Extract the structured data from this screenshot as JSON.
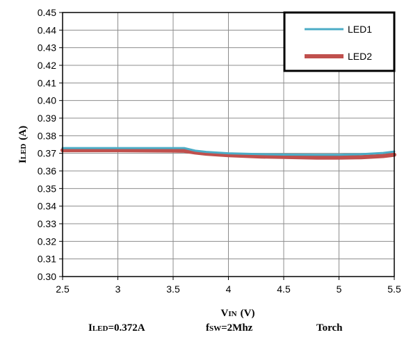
{
  "chart_data": {
    "type": "line",
    "xlim": [
      2.5,
      5.5
    ],
    "ylim": [
      0.3,
      0.45
    ],
    "x_ticks": [
      "2.5",
      "3",
      "3.5",
      "4",
      "4.5",
      "5",
      "5.5"
    ],
    "y_ticks": [
      "0.30",
      "0.31",
      "0.32",
      "0.33",
      "0.34",
      "0.35",
      "0.36",
      "0.37",
      "0.38",
      "0.39",
      "0.40",
      "0.41",
      "0.42",
      "0.43",
      "0.44",
      "0.45"
    ],
    "xlabel_main": "V",
    "xlabel_sub": "IN",
    "xlabel_unit": "(V)",
    "ylabel_main": "I",
    "ylabel_sub": "LED",
    "ylabel_unit": "(A)",
    "grid": true,
    "legend_position": "top-right",
    "series": [
      {
        "name": "LED1",
        "color": "#4bacc6",
        "x": [
          2.5,
          3.0,
          3.5,
          3.6,
          3.7,
          3.8,
          4.0,
          4.3,
          4.5,
          4.8,
          5.0,
          5.2,
          5.4,
          5.5
        ],
        "y": [
          0.373,
          0.373,
          0.373,
          0.373,
          0.3715,
          0.3708,
          0.37,
          0.3695,
          0.3693,
          0.3692,
          0.3692,
          0.3695,
          0.3702,
          0.371
        ]
      },
      {
        "name": "LED2",
        "color": "#c0504d",
        "x": [
          2.5,
          3.0,
          3.5,
          3.6,
          3.7,
          3.8,
          4.0,
          4.3,
          4.5,
          4.8,
          5.0,
          5.2,
          5.4,
          5.5
        ],
        "y": [
          0.3718,
          0.3718,
          0.3716,
          0.3715,
          0.3705,
          0.3698,
          0.369,
          0.3682,
          0.368,
          0.3676,
          0.3676,
          0.3678,
          0.3685,
          0.3692
        ]
      }
    ]
  },
  "footer": {
    "iled_main": "I",
    "iled_sub": "LED",
    "iled_value": "=0.372A",
    "fsw_main": "f",
    "fsw_sub": "SW",
    "fsw_value": "=2Mhz",
    "mode": "Torch"
  }
}
